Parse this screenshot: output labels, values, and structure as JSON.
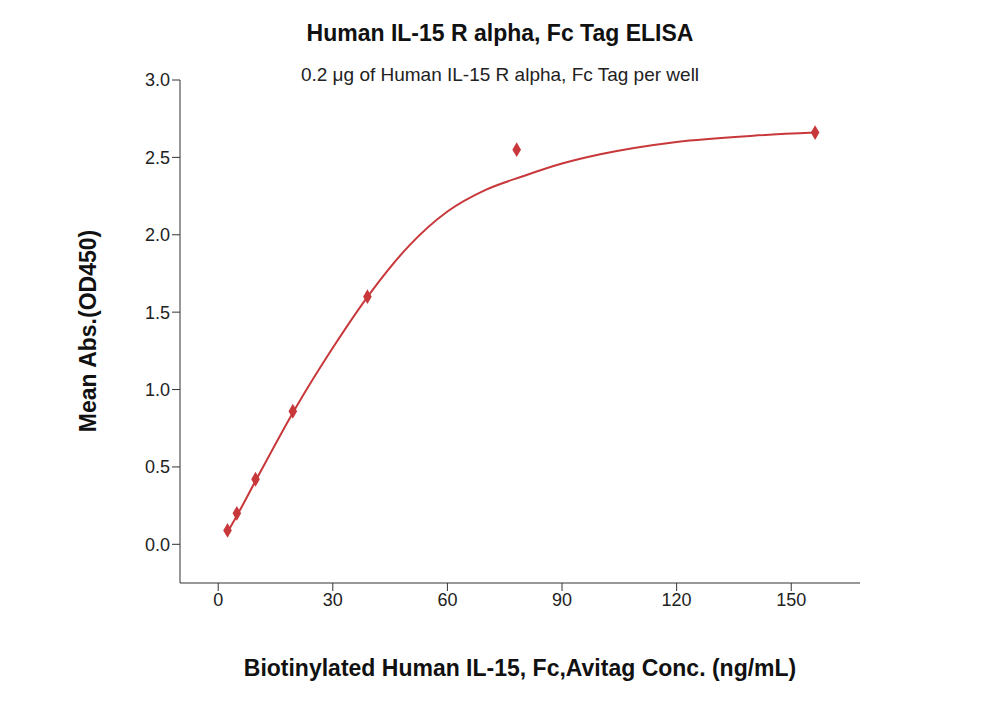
{
  "chart_data": {
    "type": "scatter",
    "title": "Human IL-15 R alpha, Fc Tag ELISA",
    "subtitle": "0.2 μg of Human IL-15 R alpha, Fc Tag per well",
    "x_label": "Biotinylated Human IL-15, Fc,Avitag Conc. (ng/mL)",
    "y_label": "Mean Abs.(OD450)",
    "xlim": [
      -10,
      168
    ],
    "ylim": [
      -0.25,
      3.0
    ],
    "xticks": [
      0,
      30,
      60,
      90,
      120,
      150
    ],
    "yticks": [
      {
        "value": 0,
        "label": "0.0"
      },
      0.5,
      {
        "value": 1,
        "label": "1.0"
      },
      1.5,
      {
        "value": 2,
        "label": "2.0"
      },
      2.5,
      {
        "value": 3,
        "label": "3.0"
      }
    ],
    "grid": false,
    "series": [
      {
        "type": "scatter",
        "marker": "diamond",
        "color": "#c8373a",
        "x": [
          2.44,
          4.88,
          9.77,
          19.53,
          39.06,
          78.13,
          156.25
        ],
        "values": [
          0.09,
          0.2,
          0.42,
          0.86,
          1.6,
          2.55,
          2.66
        ]
      },
      {
        "type": "line",
        "line_style": "solid",
        "color": "#c8373a",
        "x": [
          2.44,
          5,
          10,
          20,
          30,
          40,
          50,
          60,
          70,
          80,
          90,
          100,
          120,
          140,
          156.25
        ],
        "values": [
          0.08,
          0.19,
          0.42,
          0.87,
          1.27,
          1.63,
          1.93,
          2.15,
          2.29,
          2.38,
          2.46,
          2.52,
          2.6,
          2.64,
          2.66
        ]
      }
    ]
  }
}
